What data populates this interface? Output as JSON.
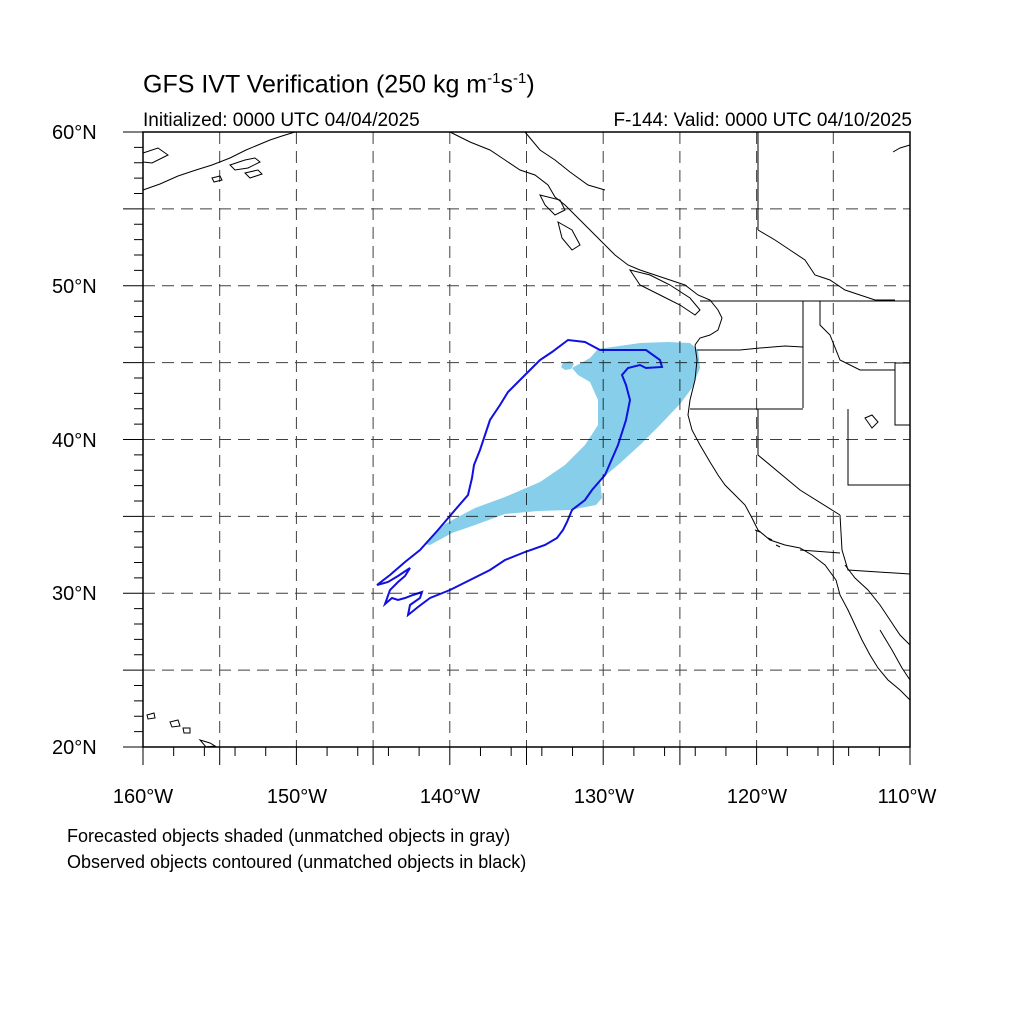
{
  "title": {
    "main": "GFS IVT Verification (250 kg m",
    "exp1": "-1",
    "mid": "s",
    "exp2": "-1",
    "end": ")"
  },
  "subtitle": {
    "initialized": "Initialized: 0000 UTC 04/04/2025",
    "valid": "F-144: Valid: 0000 UTC 04/10/2025"
  },
  "map": {
    "lon_range": [
      -160,
      -110
    ],
    "lat_range": [
      20,
      60
    ],
    "grid_lons": [
      -155,
      -150,
      -145,
      -140,
      -135,
      -130,
      -125,
      -120,
      -115
    ],
    "grid_lats": [
      25,
      30,
      35,
      40,
      45,
      50,
      55
    ],
    "lat_labels": [
      "60°N",
      "50°N",
      "40°N",
      "30°N",
      "20°N"
    ],
    "lon_labels": [
      "160°W",
      "150°W",
      "140°W",
      "130°W",
      "120°W",
      "110°W"
    ],
    "forecast_fill_color": "#87ceeb",
    "observed_contour_color": "#1010e0",
    "coastline_color": "#000000",
    "grid_line_style": "dashed"
  },
  "legend": {
    "line1": "Forecasted objects shaded (unmatched objects in gray)",
    "line2": "Observed objects contoured (unmatched objects in black)"
  }
}
